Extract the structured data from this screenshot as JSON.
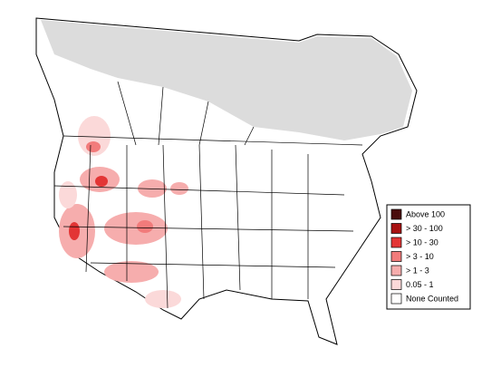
{
  "legend": {
    "items": [
      {
        "label": "Above 100",
        "color": "#4a0c0c"
      },
      {
        "label": "> 30 - 100",
        "color": "#a81212"
      },
      {
        "label": "> 10 - 30",
        "color": "#e33535"
      },
      {
        "label": "> 3 - 10",
        "color": "#f27b7b"
      },
      {
        "label": "> 1 - 3",
        "color": "#f6adad"
      },
      {
        "label": "0.05 - 1",
        "color": "#fbd9d9"
      },
      {
        "label": "None Counted",
        "color": "#ffffff"
      }
    ]
  }
}
